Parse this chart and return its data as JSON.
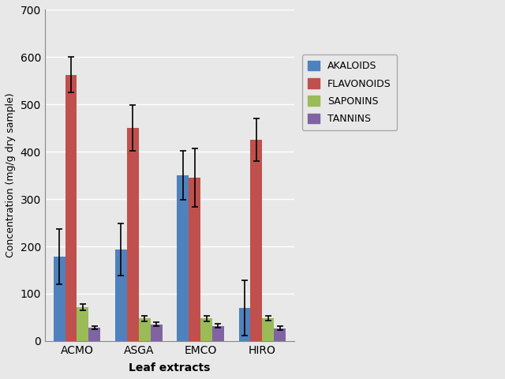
{
  "categories": [
    "ACMO",
    "ASGA",
    "EMCO",
    "HIRO"
  ],
  "series": {
    "AKALOIDS": [
      178,
      193,
      350,
      70
    ],
    "FLAVONOIDS": [
      563,
      450,
      345,
      425
    ],
    "SAPONINS": [
      72,
      48,
      48,
      48
    ],
    "TANNINS": [
      28,
      35,
      32,
      27
    ]
  },
  "errors": {
    "AKALOIDS": [
      58,
      55,
      52,
      58
    ],
    "FLAVONOIDS": [
      38,
      48,
      62,
      45
    ],
    "SAPONINS": [
      7,
      6,
      6,
      5
    ],
    "TANNINS": [
      4,
      4,
      4,
      4
    ]
  },
  "colors": {
    "AKALOIDS": "#4F81BD",
    "FLAVONOIDS": "#C0504D",
    "SAPONINS": "#9BBB59",
    "TANNINS": "#8064A2"
  },
  "ylabel": "Concentration (mg/g dry sample)",
  "xlabel": "Leaf extracts",
  "ylim": [
    0,
    700
  ],
  "yticks": [
    0,
    100,
    200,
    300,
    400,
    500,
    600,
    700
  ],
  "bar_width": 0.19,
  "plot_bg": "#E8E8E8",
  "fig_bg": "#E8E8E8",
  "legend_labels": [
    "AKALOIDS",
    "FLAVONOIDS",
    "SAPONINS",
    "TANNINS"
  ]
}
